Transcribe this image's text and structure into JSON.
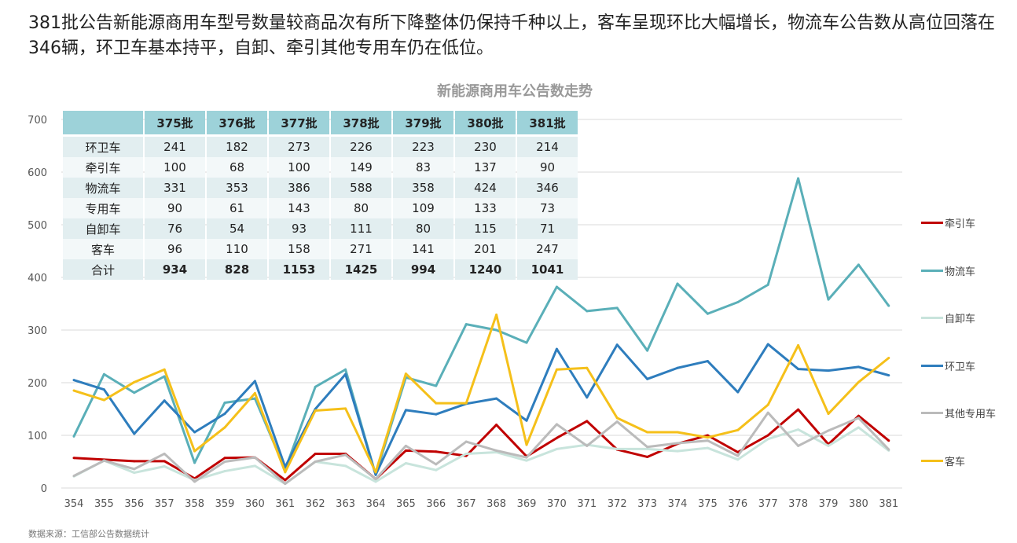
{
  "headline": "381批公告新能源商用车型号数量较商品次有所下降整体仍保持千种以上，客车呈现环比大幅增长，物流车公告数从高位回落在346辆，环卫车基本持平，自卸、牵引其他专用车仍在低位。",
  "source": "数据来源：工信部公告数据统计",
  "table": {
    "headers": [
      "375批",
      "376批",
      "377批",
      "378批",
      "379批",
      "380批",
      "381批"
    ],
    "rows": [
      {
        "label": "环卫车",
        "values": [
          "241",
          "182",
          "273",
          "226",
          "223",
          "230",
          "214"
        ]
      },
      {
        "label": "牵引车",
        "values": [
          "100",
          "68",
          "100",
          "149",
          "83",
          "137",
          "90"
        ]
      },
      {
        "label": "物流车",
        "values": [
          "331",
          "353",
          "386",
          "588",
          "358",
          "424",
          "346"
        ]
      },
      {
        "label": "专用车",
        "values": [
          "90",
          "61",
          "143",
          "80",
          "109",
          "133",
          "73"
        ]
      },
      {
        "label": "自卸车",
        "values": [
          "76",
          "54",
          "93",
          "111",
          "80",
          "115",
          "71"
        ]
      },
      {
        "label": "客车",
        "values": [
          "96",
          "110",
          "158",
          "271",
          "141",
          "201",
          "247"
        ]
      },
      {
        "label": "合计",
        "values": [
          "934",
          "828",
          "1153",
          "1425",
          "994",
          "1240",
          "1041"
        ]
      }
    ]
  },
  "chart_data": {
    "type": "line",
    "title": "新能源商用车公告数走势",
    "xlabel": "",
    "ylabel": "",
    "ylim": [
      0,
      700
    ],
    "yticks": [
      "0",
      "100",
      "200",
      "300",
      "400",
      "500",
      "600",
      "700"
    ],
    "grid": true,
    "legend_position": "right",
    "categories": [
      "354",
      "355",
      "356",
      "357",
      "358",
      "359",
      "360",
      "361",
      "362",
      "363",
      "364",
      "365",
      "366",
      "367",
      "368",
      "369",
      "370",
      "371",
      "372",
      "373",
      "374",
      "375",
      "376",
      "377",
      "378",
      "379",
      "380",
      "381"
    ],
    "series": [
      {
        "name": "牵引车",
        "color": "#c00000",
        "values": [
          57,
          54,
          51,
          51,
          18,
          57,
          58,
          15,
          65,
          65,
          17,
          71,
          69,
          61,
          120,
          60,
          95,
          127,
          73,
          59,
          84,
          100,
          68,
          100,
          149,
          83,
          137,
          90
        ]
      },
      {
        "name": "物流车",
        "color": "#5aafb8",
        "values": [
          98,
          216,
          181,
          212,
          48,
          162,
          170,
          35,
          192,
          225,
          25,
          210,
          194,
          311,
          300,
          276,
          382,
          336,
          342,
          261,
          388,
          331,
          353,
          386,
          588,
          358,
          424,
          346
        ]
      },
      {
        "name": "自卸车",
        "color": "#c8e4dc",
        "values": [
          22,
          52,
          29,
          41,
          15,
          32,
          42,
          8,
          50,
          42,
          12,
          47,
          34,
          65,
          68,
          52,
          74,
          82,
          74,
          74,
          70,
          76,
          54,
          93,
          111,
          80,
          115,
          71
        ]
      },
      {
        "name": "环卫车",
        "color": "#2e7dbd",
        "values": [
          205,
          187,
          103,
          166,
          106,
          141,
          203,
          40,
          150,
          216,
          25,
          148,
          140,
          160,
          170,
          128,
          264,
          172,
          272,
          207,
          228,
          241,
          182,
          273,
          226,
          223,
          230,
          214
        ]
      },
      {
        "name": "其他专用车",
        "color": "#bbbbbb",
        "values": [
          23,
          52,
          36,
          65,
          12,
          50,
          58,
          8,
          50,
          63,
          17,
          80,
          45,
          88,
          71,
          58,
          121,
          80,
          126,
          78,
          85,
          90,
          61,
          143,
          80,
          109,
          133,
          73
        ]
      },
      {
        "name": "客车",
        "color": "#f5c01a",
        "values": [
          185,
          167,
          201,
          225,
          70,
          115,
          180,
          30,
          147,
          151,
          30,
          217,
          161,
          161,
          329,
          82,
          225,
          228,
          133,
          106,
          106,
          96,
          110,
          158,
          271,
          141,
          201,
          247
        ]
      }
    ]
  }
}
